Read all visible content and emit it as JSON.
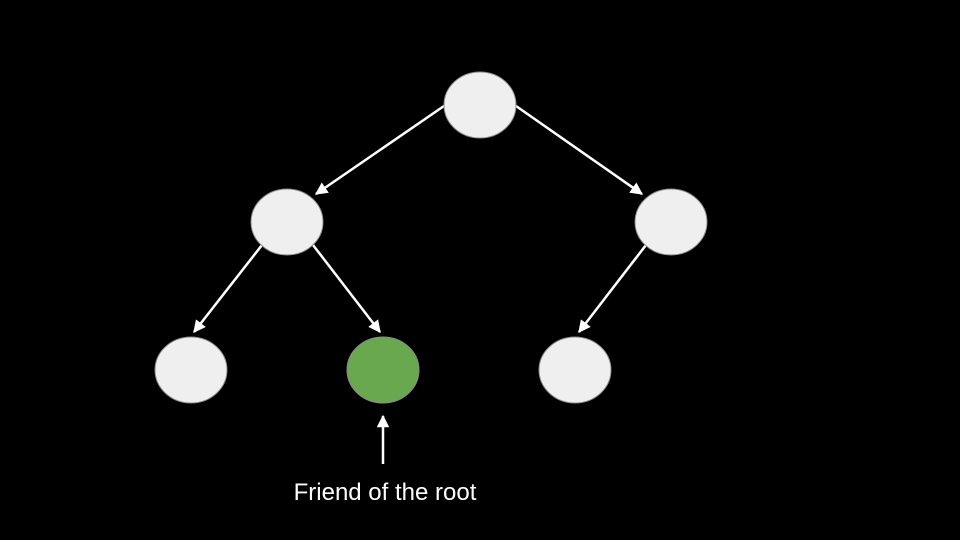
{
  "colors": {
    "background": "#000000",
    "node_fill": "#efefef",
    "highlight_fill": "#6aa84f",
    "edge": "#ffffff",
    "text": "#ffffff"
  },
  "tree": {
    "nodes": [
      {
        "id": "root",
        "highlighted": false
      },
      {
        "id": "left",
        "highlighted": false
      },
      {
        "id": "right",
        "highlighted": false
      },
      {
        "id": "left-left",
        "highlighted": false
      },
      {
        "id": "left-right",
        "highlighted": true
      },
      {
        "id": "right-left",
        "highlighted": false
      }
    ],
    "edges": [
      {
        "from": "root",
        "to": "left"
      },
      {
        "from": "root",
        "to": "right"
      },
      {
        "from": "left",
        "to": "left-left"
      },
      {
        "from": "left",
        "to": "left-right"
      },
      {
        "from": "right",
        "to": "right-left"
      }
    ]
  },
  "annotation": {
    "label": "Friend of the root",
    "target": "left-right"
  }
}
